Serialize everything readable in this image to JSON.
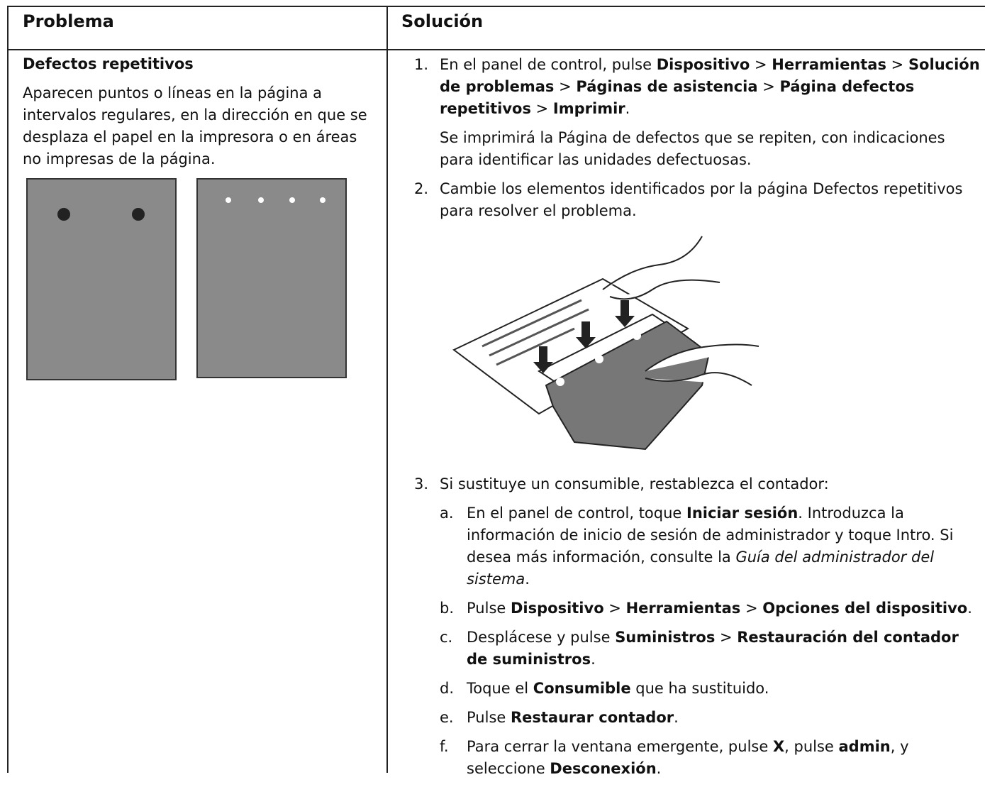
{
  "header": {
    "problem": "Problema",
    "solution": "Solución"
  },
  "problem": {
    "title": "Defectos repetitivos",
    "description": "Aparecen puntos o líneas en la página a intervalos regulares, en la dirección en que se desplaza el papel en la impresora o en áreas no impresas de la página."
  },
  "steps": [
    {
      "marker": "1.",
      "paragraphs": [
        [
          {
            "text": "En el panel de control, pulse "
          },
          {
            "text": "Dispositivo",
            "bold": true
          },
          {
            "text": " > "
          },
          {
            "text": "Herramientas",
            "bold": true
          },
          {
            "text": " > "
          },
          {
            "text": "Solución de problemas",
            "bold": true
          },
          {
            "text": " > "
          },
          {
            "text": "Páginas de asistencia",
            "bold": true
          },
          {
            "text": " > "
          },
          {
            "text": "Página defectos repetitivos",
            "bold": true
          },
          {
            "text": " > "
          },
          {
            "text": "Imprimir",
            "bold": true
          },
          {
            "text": "."
          }
        ],
        [
          {
            "text": "Se imprimirá la Página de defectos que se repiten, con indicaciones para identificar las unidades defectuosas."
          }
        ]
      ]
    },
    {
      "marker": "2.",
      "paragraphs": [
        [
          {
            "text": "Cambie los elementos identificados por la página Defectos repetitivos para resolver el problema."
          }
        ]
      ]
    },
    {
      "marker": "3.",
      "paragraphs": [
        [
          {
            "text": "Si sustituye un consumible, restablezca el contador:"
          }
        ]
      ],
      "substeps": [
        {
          "marker": "a.",
          "segments": [
            {
              "text": "En el panel de control, toque "
            },
            {
              "text": "Iniciar sesión",
              "bold": true
            },
            {
              "text": ". Introduzca la información de inicio de sesión de administrador y toque Intro. Si desea más información, consulte la "
            },
            {
              "text": "Guía del administrador del sistema",
              "italic": true
            },
            {
              "text": "."
            }
          ]
        },
        {
          "marker": "b.",
          "segments": [
            {
              "text": "Pulse "
            },
            {
              "text": "Dispositivo",
              "bold": true
            },
            {
              "text": " > "
            },
            {
              "text": "Herramientas",
              "bold": true
            },
            {
              "text": " > "
            },
            {
              "text": "Opciones del dispositivo",
              "bold": true
            },
            {
              "text": "."
            }
          ]
        },
        {
          "marker": "c.",
          "segments": [
            {
              "text": "Desplácese y pulse "
            },
            {
              "text": "Suministros",
              "bold": true
            },
            {
              "text": " > "
            },
            {
              "text": "Restauración del contador de suministros",
              "bold": true
            },
            {
              "text": "."
            }
          ]
        },
        {
          "marker": "d.",
          "segments": [
            {
              "text": "Toque el "
            },
            {
              "text": "Consumible",
              "bold": true
            },
            {
              "text": " que ha sustituido."
            }
          ]
        },
        {
          "marker": "e.",
          "segments": [
            {
              "text": "Pulse "
            },
            {
              "text": "Restaurar contador",
              "bold": true
            },
            {
              "text": "."
            }
          ]
        },
        {
          "marker": "f.",
          "segments": [
            {
              "text": "Para cerrar la ventana emergente, pulse "
            },
            {
              "text": "X",
              "bold": true
            },
            {
              "text": ", pulse "
            },
            {
              "text": "admin",
              "bold": true
            },
            {
              "text": ", y seleccione "
            },
            {
              "text": "Desconexión",
              "bold": true
            },
            {
              "text": "."
            }
          ]
        }
      ]
    }
  ]
}
